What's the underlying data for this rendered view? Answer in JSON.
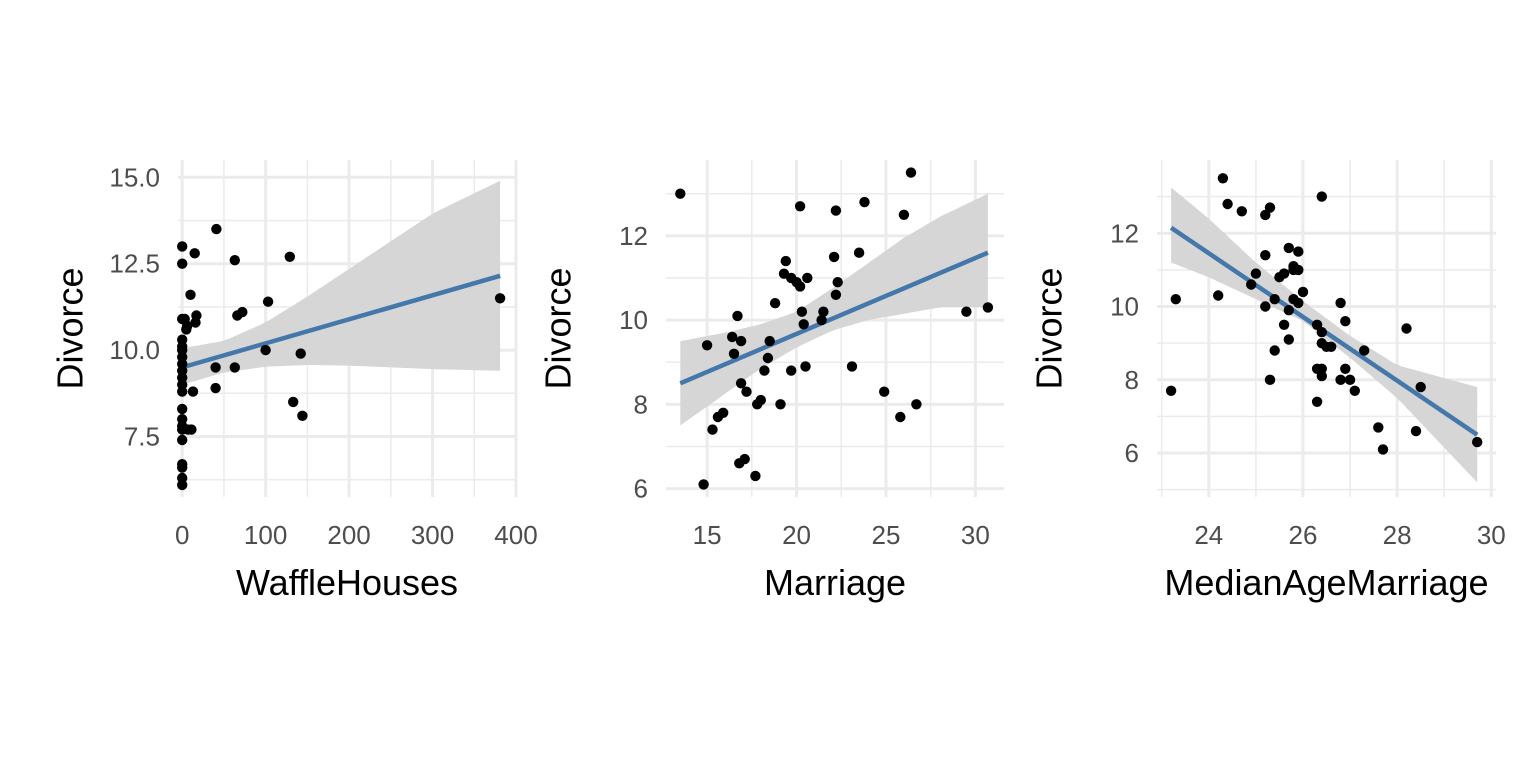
{
  "colors": {
    "background": "#ffffff",
    "grid": "#ebebeb",
    "point": "#000000",
    "fit_line": "#4477aa",
    "ribbon": "#d6d6d6"
  },
  "chart_data": [
    {
      "type": "scatter",
      "xlabel": "WaffleHouses",
      "ylabel": "Divorce",
      "xlim": [
        -5,
        400
      ],
      "ylim": [
        5.75,
        15.5
      ],
      "xticks": [
        0,
        100,
        200,
        300,
        400
      ],
      "yticks": [
        7.5,
        10.0,
        12.5,
        15.0
      ],
      "ytick_labels": [
        "7.5",
        "10.0",
        "12.5",
        "15.0"
      ],
      "grid": true,
      "points": [
        [
          0,
          13.0
        ],
        [
          0,
          12.5
        ],
        [
          0,
          10.9
        ],
        [
          0,
          10.3
        ],
        [
          0,
          10.1
        ],
        [
          0,
          10.0
        ],
        [
          0,
          9.8
        ],
        [
          0,
          9.6
        ],
        [
          0,
          9.4
        ],
        [
          0,
          9.2
        ],
        [
          0,
          9.0
        ],
        [
          0,
          8.8
        ],
        [
          0,
          8.3
        ],
        [
          0,
          8.0
        ],
        [
          0,
          7.8
        ],
        [
          0,
          7.7
        ],
        [
          0,
          7.4
        ],
        [
          0,
          6.7
        ],
        [
          0,
          6.6
        ],
        [
          0,
          6.3
        ],
        [
          0,
          6.1
        ],
        [
          3,
          10.9
        ],
        [
          5,
          10.6
        ],
        [
          6,
          10.7
        ],
        [
          7,
          7.7
        ],
        [
          10,
          11.6
        ],
        [
          11,
          7.7
        ],
        [
          13,
          8.8
        ],
        [
          15,
          12.8
        ],
        [
          16,
          10.8
        ],
        [
          17,
          11.0
        ],
        [
          40,
          8.9
        ],
        [
          40,
          9.5
        ],
        [
          41,
          13.5
        ],
        [
          63,
          9.5
        ],
        [
          63,
          12.6
        ],
        [
          66,
          11.0
        ],
        [
          72,
          11.1
        ],
        [
          100,
          10.0
        ],
        [
          103,
          11.4
        ],
        [
          129,
          12.7
        ],
        [
          133,
          8.5
        ],
        [
          142,
          9.9
        ],
        [
          144,
          8.1
        ],
        [
          381,
          11.5
        ]
      ],
      "fit": {
        "x": [
          0,
          381
        ],
        "y": [
          9.5,
          12.15
        ]
      },
      "ribbon": {
        "x": [
          0,
          50,
          100,
          150,
          200,
          250,
          300,
          381
        ],
        "lower": [
          9.0,
          9.35,
          9.52,
          9.57,
          9.55,
          9.5,
          9.45,
          9.4
        ],
        "upper": [
          10.05,
          10.27,
          10.8,
          11.55,
          12.35,
          13.15,
          13.95,
          14.9
        ]
      }
    },
    {
      "type": "scatter",
      "xlabel": "Marriage",
      "ylabel": "Divorce",
      "xlim": [
        12.7,
        31.6
      ],
      "ylim": [
        5.8,
        13.8
      ],
      "xticks": [
        15,
        20,
        25,
        30
      ],
      "yticks": [
        6,
        8,
        10,
        12
      ],
      "ytick_labels": [
        "6",
        "8",
        "10",
        "12"
      ],
      "grid": true,
      "points": [
        [
          13.5,
          13.0
        ],
        [
          14.8,
          6.1
        ],
        [
          15.0,
          9.4
        ],
        [
          15.3,
          7.4
        ],
        [
          15.6,
          7.7
        ],
        [
          15.9,
          7.8
        ],
        [
          16.4,
          9.6
        ],
        [
          16.5,
          9.2
        ],
        [
          16.7,
          10.1
        ],
        [
          16.8,
          6.6
        ],
        [
          16.9,
          9.5
        ],
        [
          16.9,
          8.5
        ],
        [
          17.1,
          6.7
        ],
        [
          17.2,
          8.3
        ],
        [
          17.7,
          6.3
        ],
        [
          17.8,
          8.0
        ],
        [
          18.0,
          8.1
        ],
        [
          18.2,
          8.8
        ],
        [
          18.4,
          9.1
        ],
        [
          18.5,
          9.5
        ],
        [
          18.8,
          10.4
        ],
        [
          19.1,
          8.0
        ],
        [
          19.3,
          11.1
        ],
        [
          19.4,
          11.4
        ],
        [
          19.7,
          8.8
        ],
        [
          19.7,
          11.0
        ],
        [
          20.0,
          10.9
        ],
        [
          20.2,
          12.7
        ],
        [
          20.2,
          10.8
        ],
        [
          20.3,
          10.2
        ],
        [
          20.4,
          9.9
        ],
        [
          20.5,
          8.9
        ],
        [
          20.6,
          11.0
        ],
        [
          21.4,
          10.0
        ],
        [
          21.5,
          10.2
        ],
        [
          22.1,
          11.5
        ],
        [
          22.2,
          10.6
        ],
        [
          22.2,
          12.6
        ],
        [
          22.3,
          10.9
        ],
        [
          23.1,
          8.9
        ],
        [
          23.5,
          11.6
        ],
        [
          23.8,
          12.8
        ],
        [
          24.9,
          8.3
        ],
        [
          25.8,
          7.7
        ],
        [
          26.0,
          12.5
        ],
        [
          26.4,
          13.5
        ],
        [
          26.7,
          8.0
        ],
        [
          29.5,
          10.2
        ],
        [
          30.7,
          10.3
        ]
      ],
      "fit": {
        "x": [
          13.5,
          30.7
        ],
        "y": [
          8.5,
          11.6
        ]
      },
      "ribbon": {
        "x": [
          13.5,
          16,
          18,
          20,
          22,
          24,
          26,
          28,
          30.7
        ],
        "lower": [
          7.5,
          8.25,
          8.85,
          9.35,
          9.75,
          10.0,
          10.15,
          10.3,
          10.3
        ],
        "upper": [
          9.5,
          9.7,
          9.9,
          10.2,
          10.75,
          11.35,
          11.95,
          12.45,
          13.0
        ]
      }
    },
    {
      "type": "scatter",
      "xlabel": "MedianAgeMarriage",
      "ylabel": "Divorce",
      "xlim": [
        22.9,
        30.1
      ],
      "ylim": [
        4.8,
        14.0
      ],
      "xticks": [
        24,
        26,
        28,
        30
      ],
      "yticks": [
        6,
        8,
        10,
        12
      ],
      "ytick_labels": [
        "6",
        "8",
        "10",
        "12"
      ],
      "grid": true,
      "points": [
        [
          23.2,
          7.7
        ],
        [
          23.3,
          10.2
        ],
        [
          24.2,
          10.3
        ],
        [
          24.3,
          13.5
        ],
        [
          24.4,
          12.8
        ],
        [
          24.7,
          12.6
        ],
        [
          24.9,
          10.6
        ],
        [
          25.0,
          10.9
        ],
        [
          25.2,
          11.4
        ],
        [
          25.2,
          12.5
        ],
        [
          25.2,
          10.0
        ],
        [
          25.3,
          12.7
        ],
        [
          25.3,
          8.0
        ],
        [
          25.4,
          8.8
        ],
        [
          25.4,
          10.2
        ],
        [
          25.5,
          10.8
        ],
        [
          25.6,
          10.9
        ],
        [
          25.6,
          9.5
        ],
        [
          25.7,
          11.6
        ],
        [
          25.7,
          9.9
        ],
        [
          25.7,
          9.1
        ],
        [
          25.8,
          11.0
        ],
        [
          25.8,
          11.1
        ],
        [
          25.8,
          10.2
        ],
        [
          25.9,
          11.5
        ],
        [
          25.9,
          11.0
        ],
        [
          25.9,
          10.1
        ],
        [
          26.0,
          10.4
        ],
        [
          26.3,
          9.5
        ],
        [
          26.3,
          8.3
        ],
        [
          26.3,
          7.4
        ],
        [
          26.4,
          13.0
        ],
        [
          26.4,
          9.3
        ],
        [
          26.4,
          9.0
        ],
        [
          26.4,
          8.1
        ],
        [
          26.4,
          8.3
        ],
        [
          26.5,
          8.9
        ],
        [
          26.6,
          8.9
        ],
        [
          26.8,
          10.1
        ],
        [
          26.8,
          8.0
        ],
        [
          26.9,
          9.6
        ],
        [
          26.9,
          8.3
        ],
        [
          27.0,
          8.0
        ],
        [
          27.1,
          7.7
        ],
        [
          27.3,
          8.8
        ],
        [
          27.6,
          6.7
        ],
        [
          27.7,
          6.1
        ],
        [
          28.2,
          9.4
        ],
        [
          28.4,
          6.6
        ],
        [
          28.5,
          7.8
        ],
        [
          29.7,
          6.3
        ]
      ],
      "fit": {
        "x": [
          23.2,
          29.7
        ],
        "y": [
          12.15,
          6.5
        ]
      },
      "ribbon": {
        "x": [
          23.2,
          24,
          25,
          26,
          27,
          28,
          29.7
        ],
        "lower": [
          11.2,
          10.8,
          10.2,
          9.6,
          8.6,
          7.5,
          5.2
        ],
        "upper": [
          13.25,
          12.4,
          11.2,
          10.15,
          9.2,
          8.4,
          7.8
        ]
      }
    }
  ]
}
